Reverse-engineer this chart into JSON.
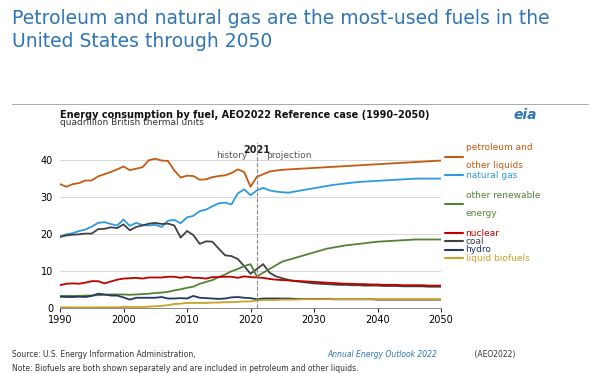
{
  "title": "Petroleum and natural gas are the most-used fuels in the\nUnited States through 2050",
  "subtitle1": "Energy consumption by fuel, AEO2022 Reference case (1990–2050)",
  "subtitle2": "quadrillion British thermal units",
  "source_plain": "Source: U.S. Energy Information Administration, ",
  "source_italic": "Annual Energy Outlook 2022",
  "source_end": " (AEO2022)",
  "note": "Note: Biofuels are both shown separately and are included in petroleum and other liquids.",
  "divider_year": 2021,
  "xlim": [
    1990,
    2050
  ],
  "ylim": [
    0,
    45
  ],
  "yticks": [
    0,
    10,
    20,
    30,
    40
  ],
  "xticks": [
    1990,
    2000,
    2010,
    2020,
    2030,
    2040,
    2050
  ],
  "series": {
    "petroleum": {
      "color": "#c55a11",
      "label1": "petroleum and",
      "label2": "other liquids",
      "years": [
        1990,
        1991,
        1992,
        1993,
        1994,
        1995,
        1996,
        1997,
        1998,
        1999,
        2000,
        2001,
        2002,
        2003,
        2004,
        2005,
        2006,
        2007,
        2008,
        2009,
        2010,
        2011,
        2012,
        2013,
        2014,
        2015,
        2016,
        2017,
        2018,
        2019,
        2020,
        2021,
        2022,
        2023,
        2024,
        2025,
        2026,
        2027,
        2028,
        2029,
        2030,
        2031,
        2032,
        2033,
        2034,
        2035,
        2036,
        2037,
        2038,
        2039,
        2040,
        2041,
        2042,
        2043,
        2044,
        2045,
        2046,
        2047,
        2048,
        2049,
        2050
      ],
      "values": [
        33.5,
        32.8,
        33.5,
        33.8,
        34.5,
        34.5,
        35.6,
        36.2,
        36.8,
        37.5,
        38.3,
        37.3,
        37.7,
        38.1,
        40.0,
        40.4,
        39.9,
        39.8,
        37.2,
        35.3,
        35.8,
        35.7,
        34.7,
        34.8,
        35.4,
        35.7,
        35.9,
        36.5,
        37.5,
        36.8,
        32.8,
        35.5,
        36.2,
        36.9,
        37.2,
        37.4,
        37.5,
        37.6,
        37.7,
        37.8,
        37.9,
        38.0,
        38.1,
        38.2,
        38.3,
        38.4,
        38.5,
        38.6,
        38.7,
        38.8,
        38.9,
        39.0,
        39.1,
        39.2,
        39.3,
        39.4,
        39.5,
        39.6,
        39.7,
        39.8,
        39.9
      ]
    },
    "natural_gas": {
      "color": "#2e9ade",
      "label1": "natural gas",
      "label2": "",
      "years": [
        1990,
        1991,
        1992,
        1993,
        1994,
        1995,
        1996,
        1997,
        1998,
        1999,
        2000,
        2001,
        2002,
        2003,
        2004,
        2005,
        2006,
        2007,
        2008,
        2009,
        2010,
        2011,
        2012,
        2013,
        2014,
        2015,
        2016,
        2017,
        2018,
        2019,
        2020,
        2021,
        2022,
        2023,
        2024,
        2025,
        2026,
        2027,
        2028,
        2029,
        2030,
        2031,
        2032,
        2033,
        2034,
        2035,
        2036,
        2037,
        2038,
        2039,
        2040,
        2041,
        2042,
        2043,
        2044,
        2045,
        2046,
        2047,
        2048,
        2049,
        2050
      ],
      "values": [
        19.3,
        19.9,
        20.2,
        20.8,
        21.2,
        22.0,
        23.0,
        23.2,
        22.7,
        22.3,
        23.9,
        22.2,
        23.0,
        22.4,
        22.3,
        22.5,
        21.9,
        23.6,
        23.8,
        22.9,
        24.5,
        24.9,
        26.2,
        26.6,
        27.5,
        28.3,
        28.5,
        28.0,
        31.0,
        32.1,
        30.5,
        31.8,
        32.5,
        31.8,
        31.5,
        31.3,
        31.2,
        31.5,
        31.8,
        32.1,
        32.4,
        32.7,
        33.0,
        33.3,
        33.5,
        33.7,
        33.9,
        34.1,
        34.2,
        34.3,
        34.4,
        34.5,
        34.6,
        34.7,
        34.8,
        34.9,
        35.0,
        35.0,
        35.0,
        35.0,
        35.0
      ]
    },
    "renewable": {
      "color": "#548235",
      "label1": "other renewable",
      "label2": "energy",
      "years": [
        1990,
        1991,
        1992,
        1993,
        1994,
        1995,
        1996,
        1997,
        1998,
        1999,
        2000,
        2001,
        2002,
        2003,
        2004,
        2005,
        2006,
        2007,
        2008,
        2009,
        2010,
        2011,
        2012,
        2013,
        2014,
        2015,
        2016,
        2017,
        2018,
        2019,
        2020,
        2021,
        2022,
        2023,
        2024,
        2025,
        2026,
        2027,
        2028,
        2029,
        2030,
        2031,
        2032,
        2033,
        2034,
        2035,
        2036,
        2037,
        2038,
        2039,
        2040,
        2041,
        2042,
        2043,
        2044,
        2045,
        2046,
        2047,
        2048,
        2049,
        2050
      ],
      "values": [
        3.2,
        3.2,
        3.2,
        3.2,
        3.3,
        3.3,
        3.4,
        3.5,
        3.6,
        3.6,
        3.6,
        3.5,
        3.6,
        3.7,
        3.8,
        4.0,
        4.1,
        4.3,
        4.7,
        5.0,
        5.4,
        5.7,
        6.5,
        7.0,
        7.5,
        8.3,
        9.0,
        9.9,
        10.5,
        11.3,
        11.8,
        8.5,
        9.5,
        10.5,
        11.5,
        12.5,
        13.0,
        13.5,
        14.0,
        14.5,
        15.0,
        15.5,
        16.0,
        16.3,
        16.6,
        16.9,
        17.1,
        17.3,
        17.5,
        17.7,
        17.9,
        18.0,
        18.1,
        18.2,
        18.3,
        18.4,
        18.5,
        18.5,
        18.5,
        18.5,
        18.5
      ]
    },
    "nuclear": {
      "color": "#c00000",
      "label1": "nuclear",
      "label2": "",
      "years": [
        1990,
        1991,
        1992,
        1993,
        1994,
        1995,
        1996,
        1997,
        1998,
        1999,
        2000,
        2001,
        2002,
        2003,
        2004,
        2005,
        2006,
        2007,
        2008,
        2009,
        2010,
        2011,
        2012,
        2013,
        2014,
        2015,
        2016,
        2017,
        2018,
        2019,
        2020,
        2021,
        2022,
        2023,
        2024,
        2025,
        2026,
        2027,
        2028,
        2029,
        2030,
        2031,
        2032,
        2033,
        2034,
        2035,
        2036,
        2037,
        2038,
        2039,
        2040,
        2041,
        2042,
        2043,
        2044,
        2045,
        2046,
        2047,
        2048,
        2049,
        2050
      ],
      "values": [
        6.1,
        6.5,
        6.6,
        6.5,
        6.8,
        7.2,
        7.2,
        6.6,
        7.1,
        7.6,
        7.9,
        8.0,
        8.1,
        7.9,
        8.2,
        8.2,
        8.2,
        8.4,
        8.4,
        8.1,
        8.4,
        8.1,
        8.1,
        7.9,
        8.3,
        8.3,
        8.4,
        8.4,
        8.1,
        8.5,
        8.3,
        8.2,
        8.1,
        7.8,
        7.6,
        7.5,
        7.4,
        7.3,
        7.2,
        7.1,
        7.0,
        6.9,
        6.8,
        6.7,
        6.6,
        6.5,
        6.5,
        6.4,
        6.4,
        6.3,
        6.3,
        6.2,
        6.2,
        6.2,
        6.1,
        6.1,
        6.1,
        6.1,
        6.0,
        6.0,
        6.0
      ]
    },
    "coal": {
      "color": "#404040",
      "label1": "coal",
      "label2": "",
      "years": [
        1990,
        1991,
        1992,
        1993,
        1994,
        1995,
        1996,
        1997,
        1998,
        1999,
        2000,
        2001,
        2002,
        2003,
        2004,
        2005,
        2006,
        2007,
        2008,
        2009,
        2010,
        2011,
        2012,
        2013,
        2014,
        2015,
        2016,
        2017,
        2018,
        2019,
        2020,
        2021,
        2022,
        2023,
        2024,
        2025,
        2026,
        2027,
        2028,
        2029,
        2030,
        2031,
        2032,
        2033,
        2034,
        2035,
        2036,
        2037,
        2038,
        2039,
        2040,
        2041,
        2042,
        2043,
        2044,
        2045,
        2046,
        2047,
        2048,
        2049,
        2050
      ],
      "values": [
        19.2,
        19.6,
        19.8,
        19.9,
        20.1,
        20.1,
        21.3,
        21.4,
        21.8,
        21.6,
        22.6,
        21.0,
        21.9,
        22.3,
        22.8,
        23.0,
        22.7,
        22.8,
        22.3,
        19.0,
        20.8,
        19.7,
        17.3,
        18.0,
        17.9,
        16.0,
        14.2,
        14.0,
        13.2,
        11.3,
        9.2,
        10.5,
        11.8,
        9.5,
        8.5,
        8.0,
        7.5,
        7.2,
        7.0,
        6.8,
        6.6,
        6.5,
        6.4,
        6.3,
        6.2,
        6.2,
        6.1,
        6.1,
        6.0,
        6.0,
        6.0,
        5.9,
        5.9,
        5.9,
        5.8,
        5.8,
        5.8,
        5.8,
        5.7,
        5.7,
        5.7
      ]
    },
    "hydro": {
      "color": "#1f3864",
      "label1": "hydro",
      "label2": "",
      "years": [
        1990,
        1991,
        1992,
        1993,
        1994,
        1995,
        1996,
        1997,
        1998,
        1999,
        2000,
        2001,
        2002,
        2003,
        2004,
        2005,
        2006,
        2007,
        2008,
        2009,
        2010,
        2011,
        2012,
        2013,
        2014,
        2015,
        2016,
        2017,
        2018,
        2019,
        2020,
        2021,
        2022,
        2023,
        2024,
        2025,
        2026,
        2027,
        2028,
        2029,
        2030,
        2031,
        2032,
        2033,
        2034,
        2035,
        2036,
        2037,
        2038,
        2039,
        2040,
        2041,
        2042,
        2043,
        2044,
        2045,
        2046,
        2047,
        2048,
        2049,
        2050
      ],
      "values": [
        3.0,
        2.9,
        2.9,
        3.0,
        2.9,
        3.2,
        3.8,
        3.6,
        3.3,
        3.3,
        2.8,
        2.2,
        2.7,
        2.7,
        2.7,
        2.7,
        2.9,
        2.5,
        2.5,
        2.6,
        2.5,
        3.2,
        2.7,
        2.6,
        2.5,
        2.4,
        2.5,
        2.8,
        2.9,
        2.7,
        2.6,
        2.3,
        2.5,
        2.5,
        2.5,
        2.5,
        2.5,
        2.4,
        2.4,
        2.4,
        2.4,
        2.4,
        2.4,
        2.3,
        2.3,
        2.3,
        2.3,
        2.3,
        2.3,
        2.3,
        2.2,
        2.2,
        2.2,
        2.2,
        2.2,
        2.2,
        2.2,
        2.2,
        2.2,
        2.2,
        2.2
      ]
    },
    "biofuels": {
      "color": "#c9a227",
      "label1": "liquid biofuels",
      "label2": "",
      "years": [
        1990,
        1991,
        1992,
        1993,
        1994,
        1995,
        1996,
        1997,
        1998,
        1999,
        2000,
        2001,
        2002,
        2003,
        2004,
        2005,
        2006,
        2007,
        2008,
        2009,
        2010,
        2011,
        2012,
        2013,
        2014,
        2015,
        2016,
        2017,
        2018,
        2019,
        2020,
        2021,
        2022,
        2023,
        2024,
        2025,
        2026,
        2027,
        2028,
        2029,
        2030,
        2031,
        2032,
        2033,
        2034,
        2035,
        2036,
        2037,
        2038,
        2039,
        2040,
        2041,
        2042,
        2043,
        2044,
        2045,
        2046,
        2047,
        2048,
        2049,
        2050
      ],
      "values": [
        0.1,
        0.1,
        0.1,
        0.1,
        0.1,
        0.1,
        0.1,
        0.1,
        0.1,
        0.1,
        0.2,
        0.2,
        0.2,
        0.2,
        0.3,
        0.4,
        0.5,
        0.7,
        1.0,
        1.1,
        1.3,
        1.3,
        1.3,
        1.3,
        1.4,
        1.4,
        1.5,
        1.5,
        1.6,
        1.7,
        1.7,
        2.0,
        2.1,
        2.1,
        2.1,
        2.2,
        2.2,
        2.2,
        2.3,
        2.3,
        2.3,
        2.3,
        2.3,
        2.3,
        2.3,
        2.3,
        2.3,
        2.3,
        2.3,
        2.3,
        2.3,
        2.3,
        2.3,
        2.3,
        2.3,
        2.3,
        2.3,
        2.3,
        2.3,
        2.3,
        2.3
      ]
    }
  },
  "title_color": "#2e75b6",
  "bg_color": "#ffffff",
  "grid_color": "#c8c8c8"
}
